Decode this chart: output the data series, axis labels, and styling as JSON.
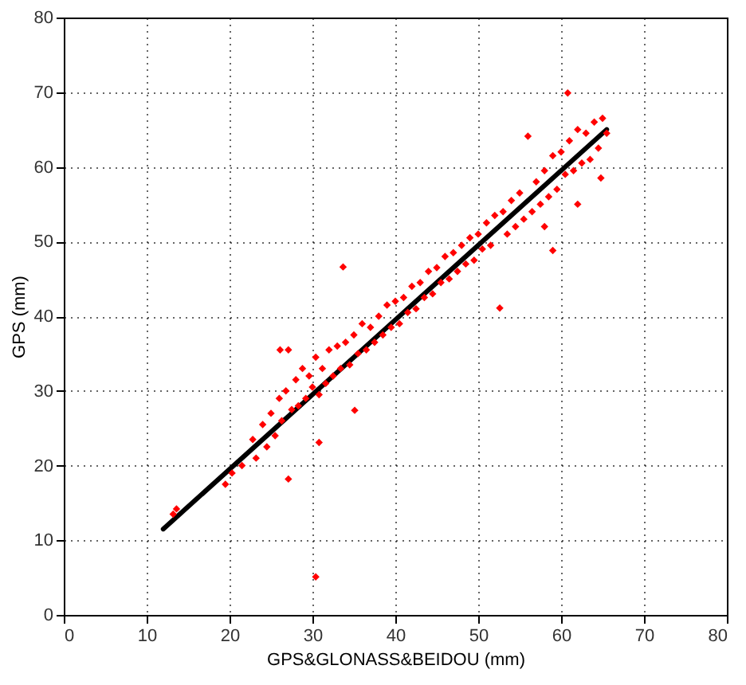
{
  "chart_data": {
    "type": "scatter",
    "xlabel": "GPS&GLONASS&BEIDOU (mm)",
    "ylabel": "GPS (mm)",
    "xlim": [
      0,
      80
    ],
    "ylim": [
      0,
      80
    ],
    "xticks": [
      0,
      10,
      20,
      30,
      40,
      50,
      60,
      70,
      80
    ],
    "yticks": [
      0,
      10,
      20,
      30,
      40,
      50,
      60,
      70,
      80
    ],
    "grid": true,
    "series": [
      {
        "marker": "diamond",
        "color": "#ff0000",
        "x": [
          13.2,
          13.6,
          19.5,
          20.3,
          21.5,
          22.8,
          23.2,
          24.0,
          24.5,
          25.0,
          25.5,
          26.0,
          26.3,
          26.8,
          27.1,
          27.5,
          28.0,
          28.3,
          28.8,
          29.2,
          29.6,
          30.0,
          30.4,
          30.8,
          31.2,
          31.6,
          32.0,
          32.5,
          33.0,
          33.4,
          33.7,
          34.0,
          34.5,
          35.0,
          35.1,
          35.5,
          36.0,
          36.5,
          37.0,
          37.5,
          38.0,
          38.5,
          39.0,
          39.5,
          40.0,
          40.5,
          41.0,
          41.5,
          42.0,
          42.5,
          43.0,
          43.5,
          44.0,
          44.5,
          45.0,
          45.5,
          46.0,
          46.5,
          47.0,
          47.5,
          48.0,
          48.5,
          49.0,
          49.5,
          50.0,
          50.5,
          51.0,
          51.5,
          52.0,
          52.6,
          53.0,
          53.5,
          54.0,
          54.5,
          55.0,
          55.5,
          56.0,
          56.5,
          57.0,
          57.5,
          58.0,
          58.5,
          59.0,
          59.5,
          60.0,
          60.5,
          60.8,
          61.0,
          61.5,
          62.0,
          62.5,
          63.0,
          63.5,
          64.0,
          64.5,
          64.8,
          65.0,
          65.5,
          26.1,
          27.1,
          30.4,
          30.8,
          58.0,
          59.0,
          62.0
        ],
        "values": [
          13.5,
          14.2,
          17.5,
          19.0,
          20.0,
          23.5,
          21.0,
          25.5,
          22.5,
          27.0,
          24.0,
          29.0,
          26.0,
          30.0,
          35.5,
          27.5,
          31.5,
          28.0,
          33.0,
          29.0,
          32.0,
          30.5,
          34.5,
          29.5,
          33.0,
          31.0,
          35.5,
          32.0,
          36.0,
          33.0,
          46.6,
          36.5,
          33.5,
          37.5,
          27.4,
          35.0,
          39.0,
          35.5,
          38.5,
          36.5,
          40.0,
          37.5,
          41.5,
          38.5,
          42.0,
          39.0,
          42.5,
          40.5,
          44.0,
          41.0,
          44.5,
          42.5,
          46.0,
          43.0,
          46.5,
          44.5,
          48.0,
          45.0,
          48.5,
          46.0,
          49.5,
          47.0,
          50.5,
          47.5,
          51.0,
          49.0,
          52.5,
          49.5,
          53.5,
          41.1,
          54.0,
          51.0,
          55.5,
          52.0,
          56.5,
          53.0,
          64.1,
          54.0,
          58.0,
          55.0,
          59.5,
          56.0,
          61.5,
          57.0,
          62.0,
          59.0,
          69.9,
          63.5,
          59.5,
          65.0,
          60.5,
          64.5,
          61.0,
          66.0,
          62.5,
          58.5,
          66.5,
          64.5,
          35.5,
          18.2,
          5.1,
          23.1,
          52.0,
          48.8,
          55.0
        ]
      },
      {
        "type": "line",
        "color": "#000000",
        "x": [
          12,
          65.5
        ],
        "values": [
          11.5,
          65
        ]
      }
    ]
  }
}
